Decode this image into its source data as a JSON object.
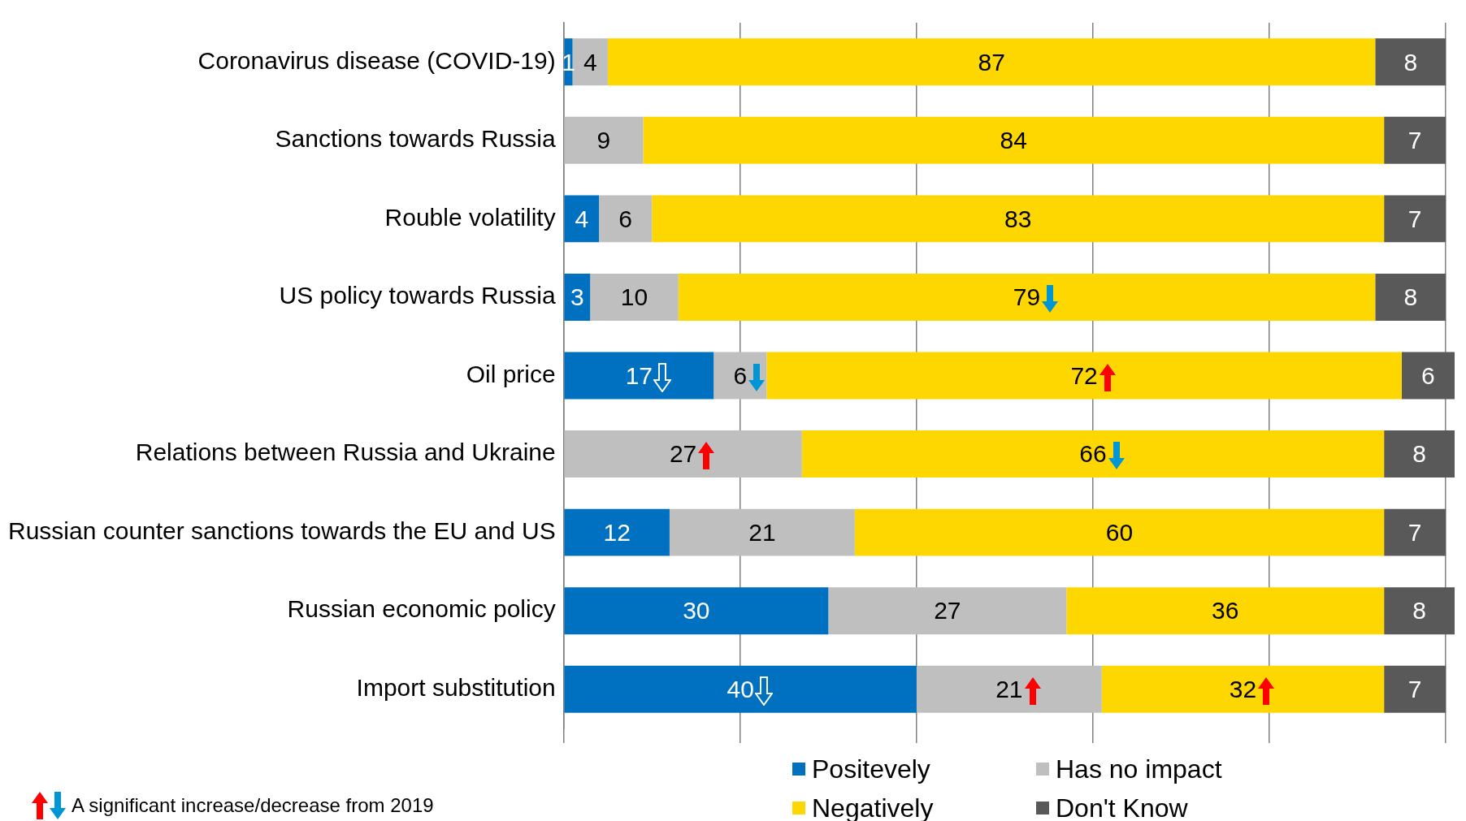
{
  "chart_data": {
    "type": "bar",
    "orientation": "horizontal",
    "stacked": true,
    "categories": [
      "Coronavirus disease (COVID-19)",
      "Sanctions towards Russia",
      "Rouble volatility",
      "US policy towards Russia",
      "Oil price",
      "Relations between Russia and Ukraine",
      "Russian counter sanctions towards the EU and US",
      "Russian economic policy",
      "Import substitution"
    ],
    "series": [
      {
        "name": "Positevely",
        "color": "#0070c0",
        "values": [
          1,
          null,
          4,
          3,
          17,
          null,
          12,
          30,
          40
        ]
      },
      {
        "name": "Has no impact",
        "color": "#bfbfbf",
        "values": [
          4,
          9,
          6,
          10,
          6,
          27,
          21,
          27,
          21
        ]
      },
      {
        "name": "Negatively",
        "color": "#ffd700",
        "values": [
          87,
          84,
          83,
          79,
          72,
          66,
          60,
          36,
          32
        ]
      },
      {
        "name": "Don't Know",
        "color": "#595959",
        "values": [
          8,
          7,
          7,
          8,
          6,
          8,
          7,
          8,
          7
        ]
      }
    ],
    "xlim": [
      0,
      101
    ],
    "xticks": [
      {
        "value": 0,
        "label": null
      },
      {
        "value": 20,
        "label": null
      },
      {
        "value": 40,
        "label": null
      },
      {
        "value": 60,
        "label": null
      },
      {
        "value": 80,
        "label": null
      },
      {
        "value": 100,
        "label": null
      }
    ],
    "tick_labels": "y",
    "grid": "x",
    "data_labels": true,
    "legend": "bottom",
    "annotations": [
      "A significant increase/decrease from 2019"
    ]
  }
}
